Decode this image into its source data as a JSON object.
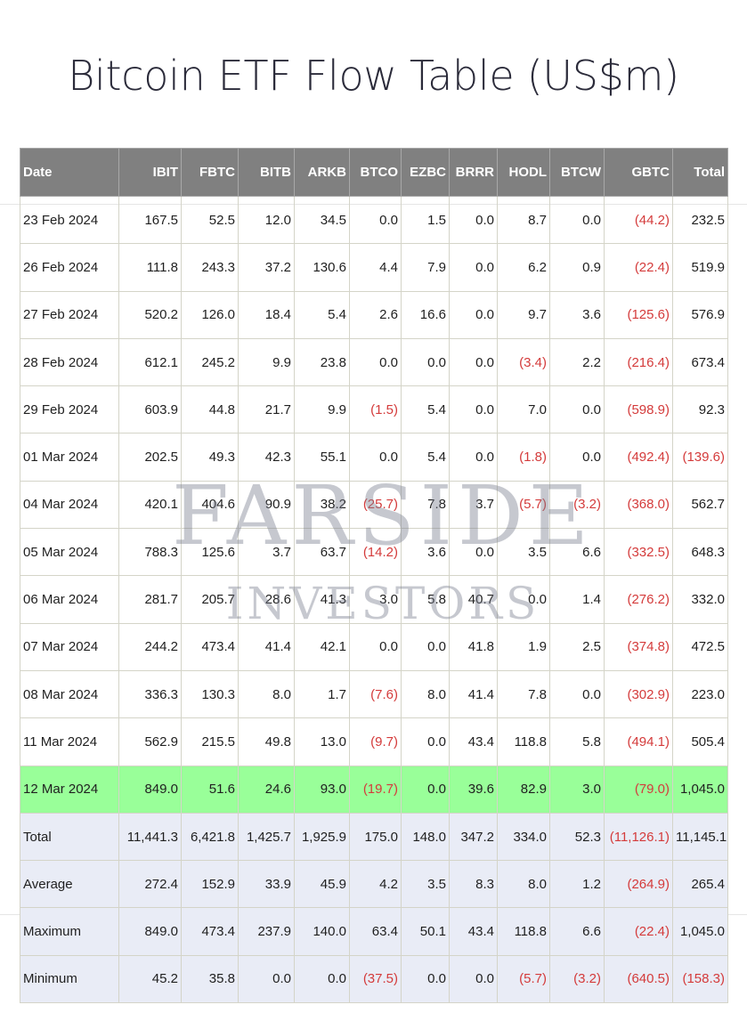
{
  "title": "Bitcoin ETF Flow Table (US$m)",
  "watermark": {
    "line1": "FARSIDE",
    "line2": "INVESTORS"
  },
  "colors": {
    "header_bg": "#808080",
    "negative": "#d43b3b",
    "highlight": "#99ff99",
    "summary_bg": "#e9ecf6"
  },
  "table": {
    "columns": [
      "Date",
      "IBIT",
      "FBTC",
      "BITB",
      "ARKB",
      "BTCO",
      "EZBC",
      "BRRR",
      "HODL",
      "BTCW",
      "GBTC",
      "Total"
    ],
    "rows": [
      [
        "23 Feb 2024",
        "167.5",
        "52.5",
        "12.0",
        "34.5",
        "0.0",
        "1.5",
        "0.0",
        "8.7",
        "0.0",
        "(44.2)",
        "232.5"
      ],
      [
        "26 Feb 2024",
        "111.8",
        "243.3",
        "37.2",
        "130.6",
        "4.4",
        "7.9",
        "0.0",
        "6.2",
        "0.9",
        "(22.4)",
        "519.9"
      ],
      [
        "27 Feb 2024",
        "520.2",
        "126.0",
        "18.4",
        "5.4",
        "2.6",
        "16.6",
        "0.0",
        "9.7",
        "3.6",
        "(125.6)",
        "576.9"
      ],
      [
        "28 Feb 2024",
        "612.1",
        "245.2",
        "9.9",
        "23.8",
        "0.0",
        "0.0",
        "0.0",
        "(3.4)",
        "2.2",
        "(216.4)",
        "673.4"
      ],
      [
        "29 Feb 2024",
        "603.9",
        "44.8",
        "21.7",
        "9.9",
        "(1.5)",
        "5.4",
        "0.0",
        "7.0",
        "0.0",
        "(598.9)",
        "92.3"
      ],
      [
        "01 Mar 2024",
        "202.5",
        "49.3",
        "42.3",
        "55.1",
        "0.0",
        "5.4",
        "0.0",
        "(1.8)",
        "0.0",
        "(492.4)",
        "(139.6)"
      ],
      [
        "04 Mar 2024",
        "420.1",
        "404.6",
        "90.9",
        "38.2",
        "(25.7)",
        "7.8",
        "3.7",
        "(5.7)",
        "(3.2)",
        "(368.0)",
        "562.7"
      ],
      [
        "05 Mar 2024",
        "788.3",
        "125.6",
        "3.7",
        "63.7",
        "(14.2)",
        "3.6",
        "0.0",
        "3.5",
        "6.6",
        "(332.5)",
        "648.3"
      ],
      [
        "06 Mar 2024",
        "281.7",
        "205.7",
        "28.6",
        "41.3",
        "3.0",
        "5.8",
        "40.7",
        "0.0",
        "1.4",
        "(276.2)",
        "332.0"
      ],
      [
        "07 Mar 2024",
        "244.2",
        "473.4",
        "41.4",
        "42.1",
        "0.0",
        "0.0",
        "41.8",
        "1.9",
        "2.5",
        "(374.8)",
        "472.5"
      ],
      [
        "08 Mar 2024",
        "336.3",
        "130.3",
        "8.0",
        "1.7",
        "(7.6)",
        "8.0",
        "41.4",
        "7.8",
        "0.0",
        "(302.9)",
        "223.0"
      ],
      [
        "11 Mar 2024",
        "562.9",
        "215.5",
        "49.8",
        "13.0",
        "(9.7)",
        "0.0",
        "43.4",
        "118.8",
        "5.8",
        "(494.1)",
        "505.4"
      ],
      [
        "12 Mar 2024",
        "849.0",
        "51.6",
        "24.6",
        "93.0",
        "(19.7)",
        "0.0",
        "39.6",
        "82.9",
        "3.0",
        "(79.0)",
        "1,045.0"
      ],
      [
        "Total",
        "11,441.3",
        "6,421.8",
        "1,425.7",
        "1,925.9",
        "175.0",
        "148.0",
        "347.2",
        "334.0",
        "52.3",
        "(11,126.1)",
        "11,145.1"
      ],
      [
        "Average",
        "272.4",
        "152.9",
        "33.9",
        "45.9",
        "4.2",
        "3.5",
        "8.3",
        "8.0",
        "1.2",
        "(264.9)",
        "265.4"
      ],
      [
        "Maximum",
        "849.0",
        "473.4",
        "237.9",
        "140.0",
        "63.4",
        "50.1",
        "43.4",
        "118.8",
        "6.6",
        "(22.4)",
        "1,045.0"
      ],
      [
        "Minimum",
        "45.2",
        "35.8",
        "0.0",
        "0.0",
        "(37.5)",
        "0.0",
        "0.0",
        "(5.7)",
        "(3.2)",
        "(640.5)",
        "(158.3)"
      ]
    ]
  }
}
